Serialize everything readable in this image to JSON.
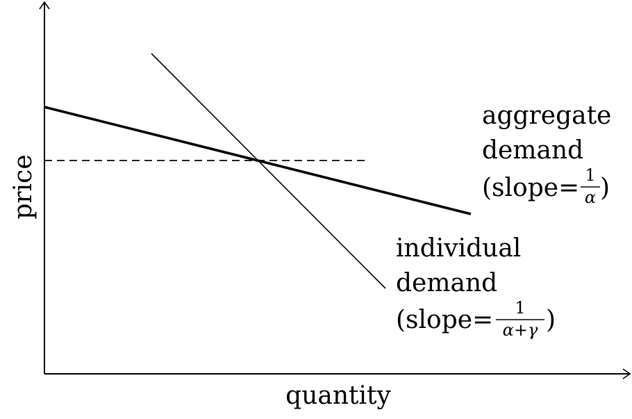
{
  "axes": {
    "x_label": "quantity",
    "y_label": "price"
  },
  "curves": {
    "aggregate": {
      "line1": "aggregate",
      "line2": "demand",
      "slope_prefix": "(slope=",
      "slope_num": "1",
      "slope_den": "α",
      "slope_suffix": ")"
    },
    "individual": {
      "line1": "individual",
      "line2": "demand",
      "slope_prefix": "(slope=",
      "slope_num": "1",
      "slope_den": "α+γ",
      "slope_suffix": ")"
    }
  }
}
